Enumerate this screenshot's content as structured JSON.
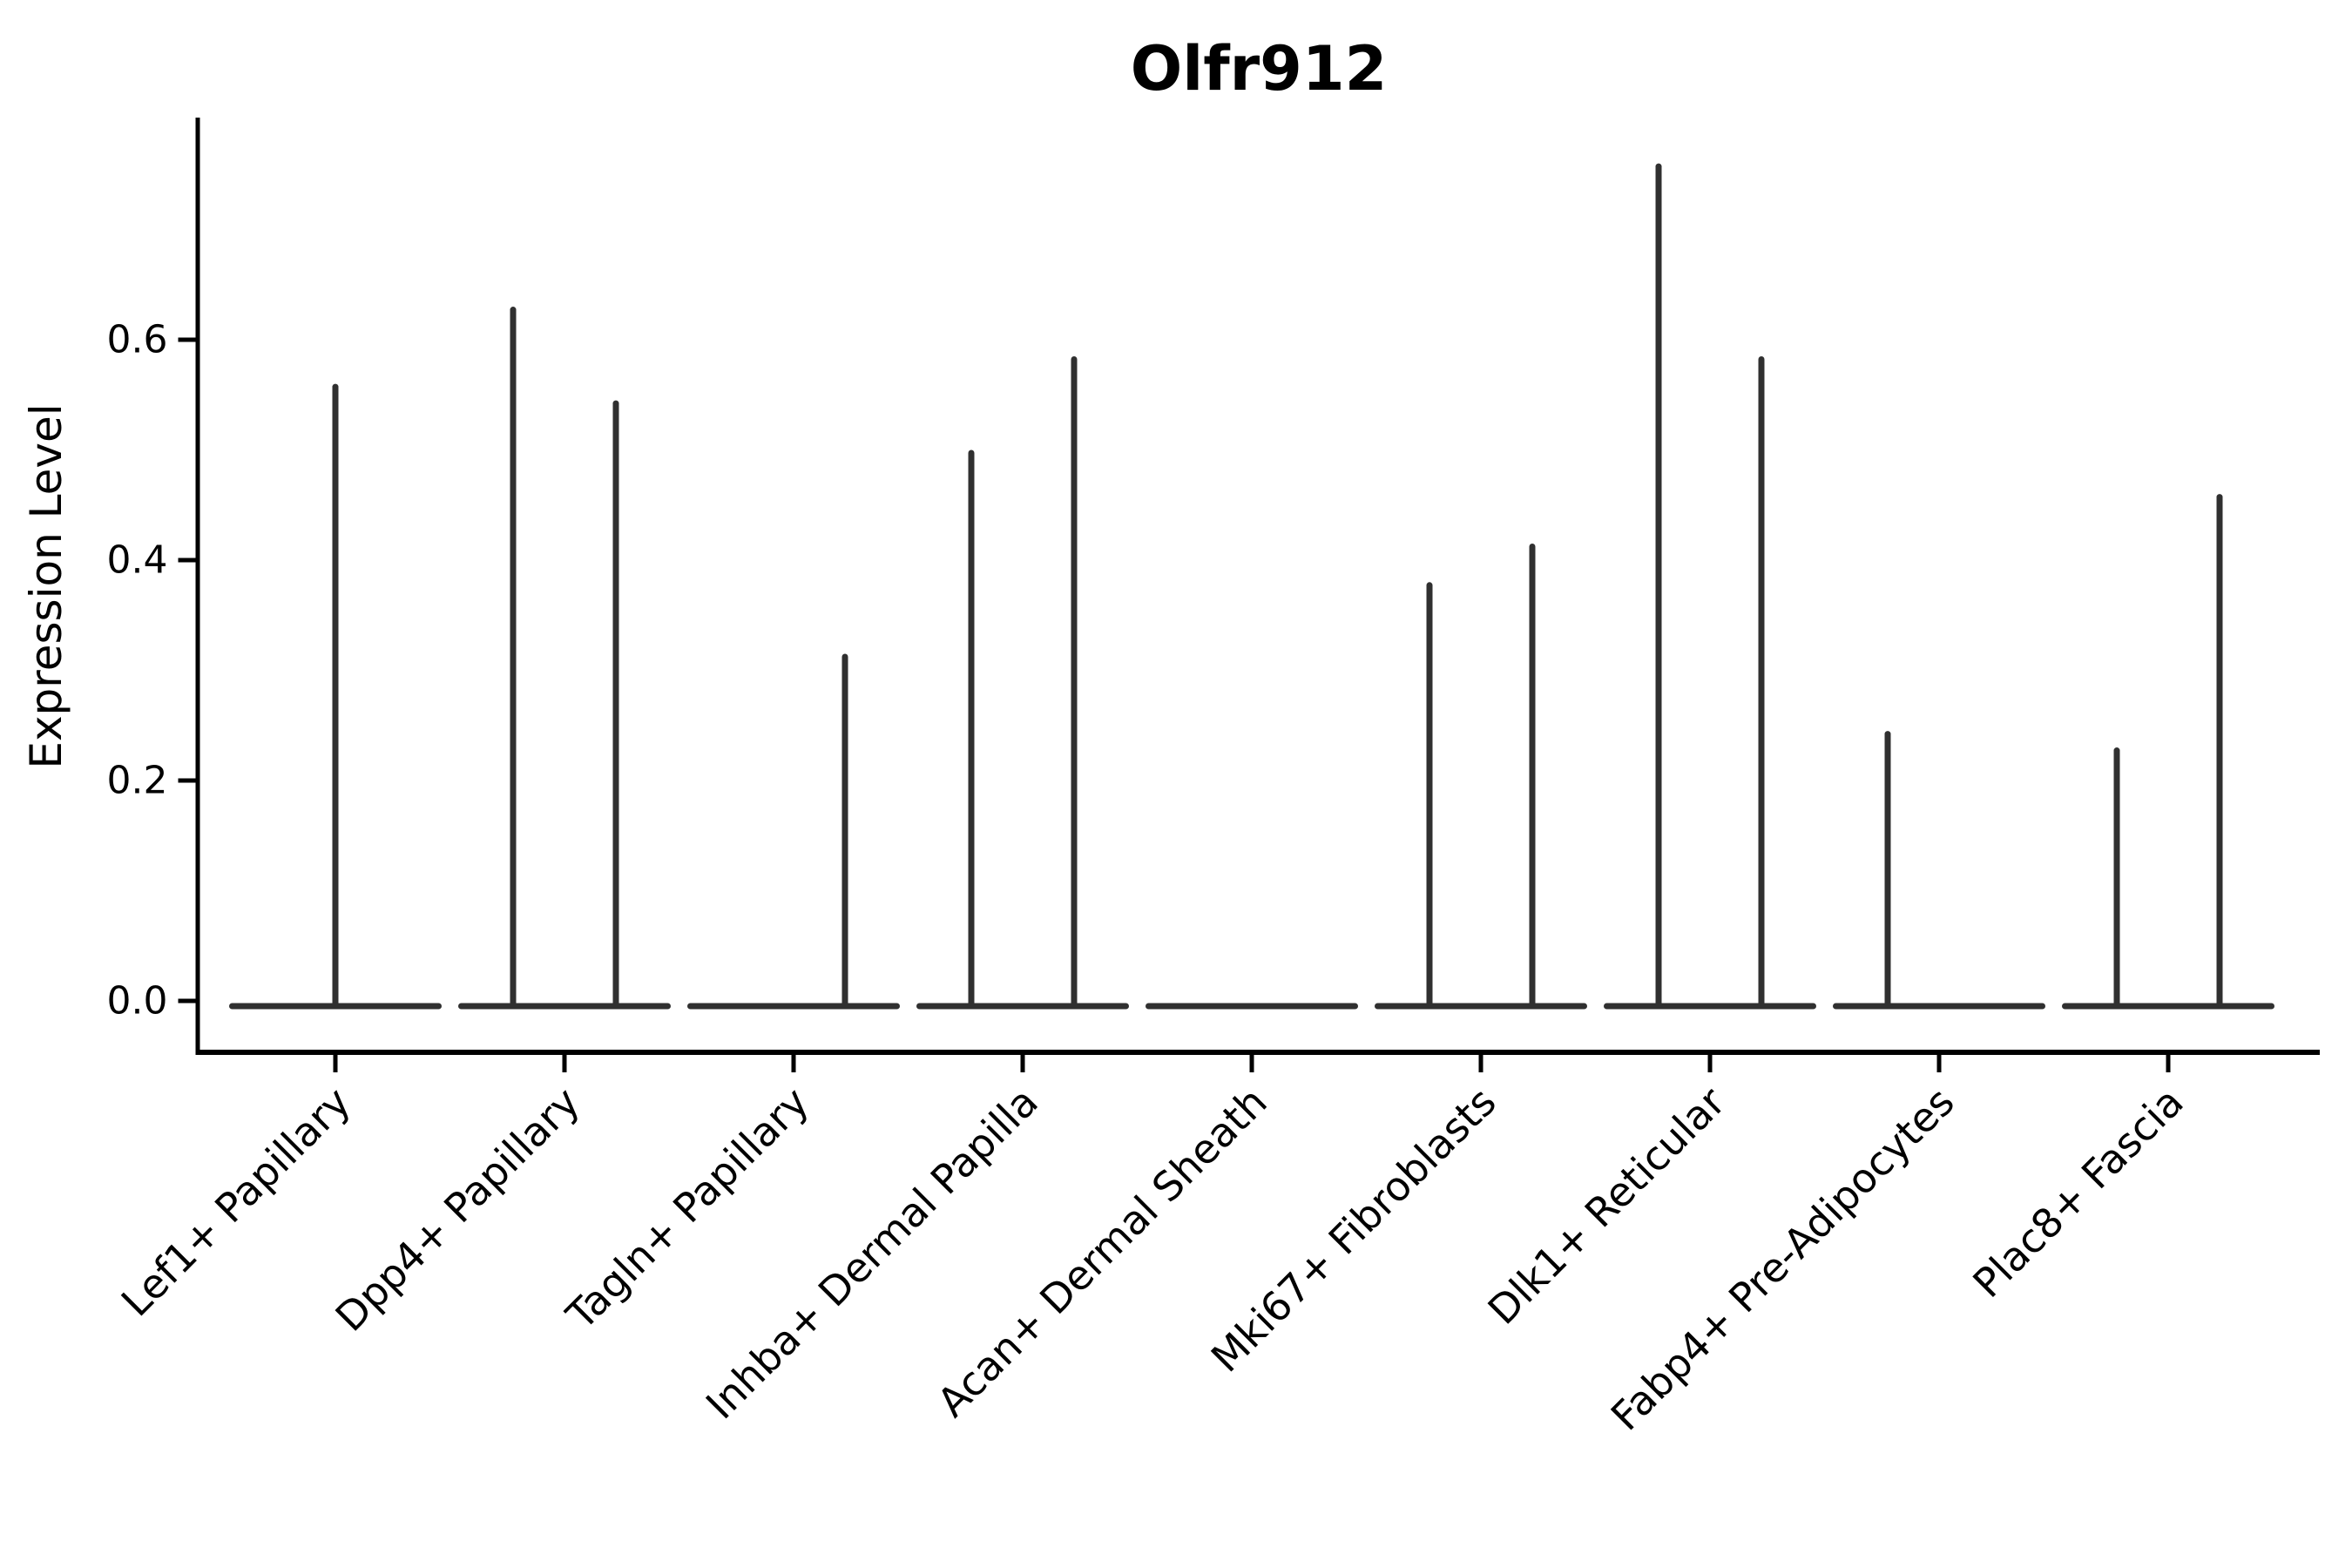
{
  "chart_data": {
    "type": "violin",
    "title": "Olfr912",
    "xlabel": "",
    "ylabel": "Expression Level",
    "ylim": [
      0,
      0.8
    ],
    "grid": false,
    "legend": "none",
    "ytick_labels": [
      "0.0",
      "0.2",
      "0.4",
      "0.6"
    ],
    "ytick_values": [
      0.0,
      0.2,
      0.4,
      0.6
    ],
    "categories": [
      {
        "label": "Lef1+ Papillary",
        "spikes": [
          {
            "pos": "center",
            "value": 0.56
          }
        ]
      },
      {
        "label": "Dpp4+ Papillary",
        "spikes": [
          {
            "pos": "left",
            "value": 0.63
          },
          {
            "pos": "right",
            "value": 0.545
          }
        ]
      },
      {
        "label": "Tagln+ Papillary",
        "spikes": [
          {
            "pos": "right",
            "value": 0.315
          }
        ]
      },
      {
        "label": "Inhba+ Dermal Papilla",
        "spikes": [
          {
            "pos": "left",
            "value": 0.5
          },
          {
            "pos": "right",
            "value": 0.585
          }
        ]
      },
      {
        "label": "Acan+ Dermal Sheath",
        "spikes": []
      },
      {
        "label": "Mki67+ Fibroblasts",
        "spikes": [
          {
            "pos": "left",
            "value": 0.38
          },
          {
            "pos": "right",
            "value": 0.415
          }
        ]
      },
      {
        "label": "Dlk1+ Reticular",
        "spikes": [
          {
            "pos": "left",
            "value": 0.76
          },
          {
            "pos": "right",
            "value": 0.585
          }
        ]
      },
      {
        "label": "Fabp4+ Pre-Adipocytes",
        "spikes": [
          {
            "pos": "left",
            "value": 0.245
          }
        ]
      },
      {
        "label": "Plac8+ Fascia",
        "spikes": [
          {
            "pos": "left",
            "value": 0.23
          },
          {
            "pos": "right",
            "value": 0.46
          }
        ]
      }
    ],
    "colors": {
      "violin": "#303030",
      "axis": "#000000",
      "text": "#000000",
      "background": "#ffffff"
    }
  }
}
